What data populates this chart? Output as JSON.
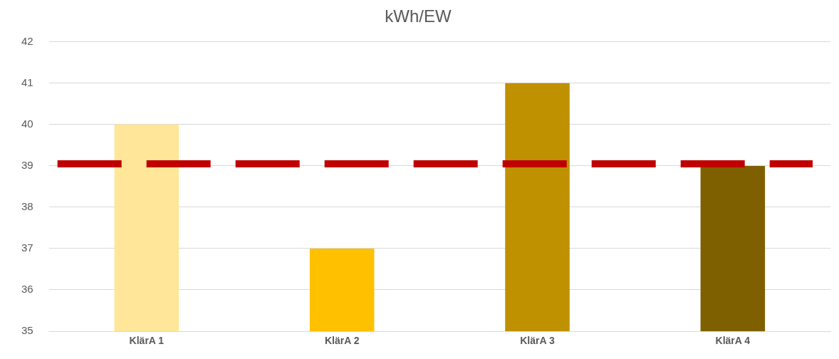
{
  "chart_data": {
    "type": "bar",
    "title": "kWh/EW",
    "categories": [
      "KlärA 1",
      "KlärA 2",
      "KlärA 3",
      "KlärA 4"
    ],
    "values": [
      40,
      37,
      41,
      39
    ],
    "colors": [
      "#ffe699",
      "#ffc000",
      "#bf9000",
      "#7f6000"
    ],
    "ylim": [
      35,
      42
    ],
    "yticks": [
      35,
      36,
      37,
      38,
      39,
      40,
      41,
      42
    ],
    "grid": "y",
    "legend": false,
    "ref_lines": [
      {
        "axis": "y",
        "value": 39.05,
        "color": "#c00000",
        "line_style": "dashed"
      }
    ]
  }
}
